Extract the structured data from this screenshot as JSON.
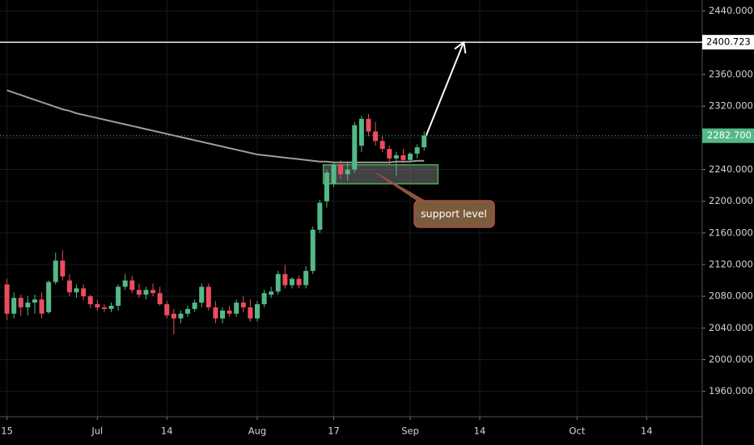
{
  "chart_data": {
    "type": "candlestick",
    "up_color": "#53b987",
    "down_color": "#eb4d5c",
    "grid": true,
    "xlim": [
      -1,
      100
    ],
    "ylim": [
      1928,
      2454
    ],
    "xticks": [
      {
        "value": 0,
        "label": "15"
      },
      {
        "value": 13,
        "label": "Jul"
      },
      {
        "value": 23,
        "label": "14"
      },
      {
        "value": 36,
        "label": "Aug"
      },
      {
        "value": 47,
        "label": "17"
      },
      {
        "value": 58,
        "label": "Sep"
      },
      {
        "value": 68,
        "label": "14"
      },
      {
        "value": 82,
        "label": "Oct"
      },
      {
        "value": 92,
        "label": "14"
      }
    ],
    "yticks": [
      {
        "value": 1960,
        "label": "1960.000"
      },
      {
        "value": 2000,
        "label": "2000.000"
      },
      {
        "value": 2040,
        "label": "2040.000"
      },
      {
        "value": 2080,
        "label": "2080.000"
      },
      {
        "value": 2120,
        "label": "2120.000"
      },
      {
        "value": 2160,
        "label": "2160.000"
      },
      {
        "value": 2200,
        "label": "2200.000"
      },
      {
        "value": 2240,
        "label": "2240.000"
      },
      {
        "value": 2280,
        "label": "2280.000"
      },
      {
        "value": 2320,
        "label": "2320.000"
      },
      {
        "value": 2360,
        "label": "2360.000"
      },
      {
        "value": 2400,
        "label": "2400.000"
      },
      {
        "value": 2440,
        "label": "2440.000"
      }
    ],
    "x": [
      0,
      1,
      2,
      3,
      4,
      5,
      6,
      7,
      8,
      9,
      10,
      11,
      12,
      13,
      14,
      15,
      16,
      17,
      18,
      19,
      20,
      21,
      22,
      23,
      24,
      25,
      26,
      27,
      28,
      29,
      30,
      31,
      32,
      33,
      34,
      35,
      36,
      37,
      38,
      39,
      40,
      41,
      42,
      43,
      44,
      45,
      46,
      47,
      48,
      49,
      50,
      51,
      52,
      53,
      54,
      55,
      56,
      57,
      58,
      59,
      60
    ],
    "open": [
      2095,
      2058,
      2078,
      2066,
      2072,
      2076,
      2060,
      2098,
      2125,
      2100,
      2085,
      2090,
      2080,
      2070,
      2066,
      2064,
      2068,
      2092,
      2100,
      2088,
      2082,
      2088,
      2084,
      2070,
      2058,
      2052,
      2058,
      2064,
      2072,
      2092,
      2066,
      2052,
      2062,
      2058,
      2072,
      2066,
      2052,
      2070,
      2082,
      2086,
      2108,
      2094,
      2102,
      2094,
      2112,
      2164,
      2200,
      2222,
      2246,
      2234,
      2240,
      2270,
      2304,
      2288,
      2276,
      2266,
      2254,
      2258,
      2252,
      2260,
      2268
    ],
    "high": [
      2102,
      2085,
      2082,
      2080,
      2082,
      2085,
      2100,
      2135,
      2138,
      2108,
      2095,
      2095,
      2082,
      2075,
      2070,
      2072,
      2095,
      2108,
      2106,
      2096,
      2092,
      2096,
      2092,
      2074,
      2064,
      2062,
      2068,
      2076,
      2096,
      2096,
      2074,
      2066,
      2068,
      2076,
      2080,
      2076,
      2074,
      2088,
      2092,
      2112,
      2120,
      2104,
      2106,
      2118,
      2168,
      2202,
      2240,
      2250,
      2252,
      2250,
      2300,
      2308,
      2310,
      2300,
      2282,
      2270,
      2262,
      2266,
      2262,
      2272,
      2288
    ],
    "low": [
      2050,
      2052,
      2055,
      2056,
      2058,
      2052,
      2058,
      2095,
      2100,
      2080,
      2078,
      2075,
      2065,
      2062,
      2060,
      2060,
      2062,
      2088,
      2084,
      2078,
      2076,
      2080,
      2068,
      2052,
      2032,
      2046,
      2054,
      2060,
      2066,
      2062,
      2046,
      2046,
      2054,
      2054,
      2060,
      2048,
      2048,
      2066,
      2078,
      2082,
      2090,
      2090,
      2090,
      2090,
      2108,
      2160,
      2192,
      2218,
      2228,
      2226,
      2236,
      2262,
      2282,
      2270,
      2262,
      2246,
      2232,
      2248,
      2250,
      2254,
      2264
    ],
    "close": [
      2058,
      2078,
      2066,
      2072,
      2076,
      2058,
      2098,
      2125,
      2105,
      2085,
      2090,
      2080,
      2070,
      2066,
      2064,
      2068,
      2092,
      2100,
      2088,
      2082,
      2088,
      2084,
      2070,
      2056,
      2052,
      2058,
      2064,
      2072,
      2092,
      2066,
      2052,
      2062,
      2058,
      2072,
      2066,
      2052,
      2070,
      2084,
      2086,
      2108,
      2094,
      2102,
      2094,
      2112,
      2164,
      2198,
      2236,
      2246,
      2234,
      2240,
      2296,
      2304,
      2288,
      2276,
      2266,
      2254,
      2258,
      2252,
      2260,
      2268,
      2283
    ],
    "ma": {
      "color": "#9e9e9e",
      "values": [
        2340,
        2337,
        2334,
        2331,
        2328,
        2325,
        2322,
        2319,
        2316,
        2314,
        2311,
        2309,
        2307,
        2305,
        2303,
        2301,
        2299,
        2297,
        2295,
        2293,
        2291,
        2289,
        2287,
        2285,
        2283,
        2281,
        2279,
        2277,
        2275,
        2273,
        2271,
        2269,
        2267,
        2265,
        2263,
        2261,
        2259,
        2258,
        2257,
        2256,
        2255,
        2254,
        2253,
        2252,
        2251,
        2250,
        2250,
        2249,
        2249,
        2249,
        2249,
        2249,
        2249,
        2249,
        2249,
        2249,
        2250,
        2250,
        2250,
        2251,
        2251
      ]
    },
    "last_price": {
      "value": 2282.7,
      "label": "2282.700",
      "color": "#53b987"
    },
    "target_level": {
      "value": 2400.723,
      "label": "2400.723",
      "color": "#ffffff"
    },
    "support_zone": {
      "low": 2222,
      "high": 2246,
      "x": [
        45.5,
        62
      ]
    },
    "projection": {
      "x": [
        60.3,
        65.7
      ],
      "y": [
        2283,
        2400.723
      ]
    },
    "annotation": "support level"
  }
}
